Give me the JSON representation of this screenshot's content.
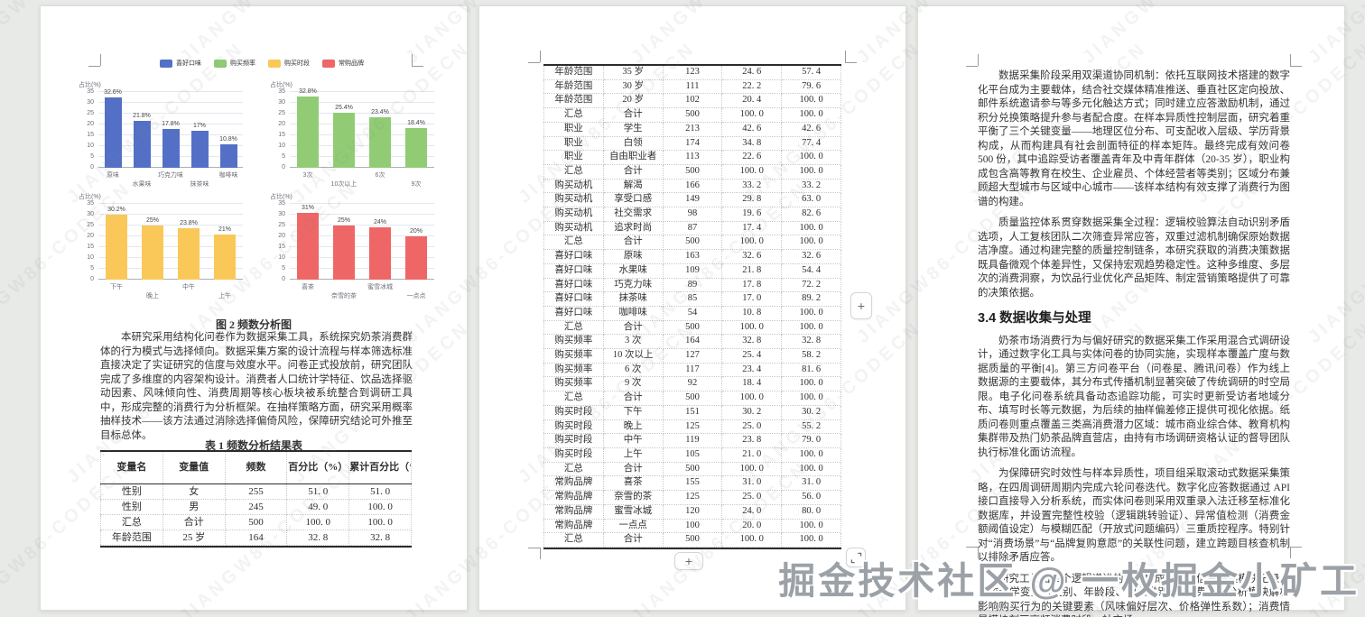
{
  "watermark": {
    "tile_text": "JIANGW86-CODECN",
    "footer_text": "掘金技术社区 @ 一枚掘金小矿工"
  },
  "chart_data": [
    {
      "type": "bar",
      "name": "喜好口味",
      "color": "#5470c6",
      "ylabel": "占比(%)",
      "ylim": [
        0,
        35
      ],
      "categories": [
        "原味",
        "水果味",
        "巧克力味",
        "抹茶味",
        "咖啡味"
      ],
      "values": [
        32.6,
        21.8,
        17.8,
        17,
        10.8
      ]
    },
    {
      "type": "bar",
      "name": "购买频率",
      "color": "#91cc75",
      "ylabel": "占比(%)",
      "ylim": [
        0,
        35
      ],
      "categories": [
        "3次",
        "10次以上",
        "6次",
        "9次"
      ],
      "values": [
        32.8,
        25.4,
        23.4,
        18.4
      ]
    },
    {
      "type": "bar",
      "name": "购买时段",
      "color": "#fac858",
      "ylabel": "占比(%)",
      "ylim": [
        0,
        35
      ],
      "categories": [
        "下午",
        "晚上",
        "中午",
        "上午"
      ],
      "values": [
        30.2,
        25,
        23.8,
        21
      ]
    },
    {
      "type": "bar",
      "name": "常购品牌",
      "color": "#ee6666",
      "ylabel": "占比(%)",
      "ylim": [
        0,
        35
      ],
      "categories": [
        "喜茶",
        "奈雪的茶",
        "蜜雪冰城",
        "一点点"
      ],
      "values": [
        31,
        25,
        24,
        20
      ]
    }
  ],
  "page1": {
    "figure_caption": "图 2 频数分析图",
    "paragraph": "本研究采用结构化问卷作为数据采集工具，系统探究奶茶消费群体的行为模式与选择倾向。数据采集方案的设计流程与样本筛选标准直接决定了实证研究的信度与效度水平。问卷正式投放前，研究团队完成了多维度的内容架构设计。消费者人口统计学特征、饮品选择驱动因素、风味倾向性、消费周期等核心板块被系统整合到调研工具中，形成完整的消费行为分析框架。在抽样策略方面，研究采用概率抽样技术——该方法通过消除选择偏倚风险，保障研究结论可外推至目标总体。",
    "table_caption": "表 1 频数分析结果表",
    "table": {
      "headers": [
        "变量名",
        "变量值",
        "频数",
        "百分比（%）",
        "累计百分比（%）"
      ],
      "rows": [
        [
          "性别",
          "女",
          "255",
          "51. 0",
          "51. 0"
        ],
        [
          "性别",
          "男",
          "245",
          "49. 0",
          "100. 0"
        ],
        [
          "汇总",
          "合计",
          "500",
          "100. 0",
          "100. 0"
        ],
        [
          "年龄范围",
          "25 岁",
          "164",
          "32. 8",
          "32. 8"
        ]
      ]
    }
  },
  "page2": {
    "table_rows": [
      [
        "年龄范围",
        "35 岁",
        "123",
        "24. 6",
        "57. 4"
      ],
      [
        "年龄范围",
        "30 岁",
        "111",
        "22. 2",
        "79. 6"
      ],
      [
        "年龄范围",
        "20 岁",
        "102",
        "20. 4",
        "100. 0"
      ],
      [
        "汇总",
        "合计",
        "500",
        "100. 0",
        "100. 0"
      ],
      [
        "职业",
        "学生",
        "213",
        "42. 6",
        "42. 6"
      ],
      [
        "职业",
        "白领",
        "174",
        "34. 8",
        "77. 4"
      ],
      [
        "职业",
        "自由职业者",
        "113",
        "22. 6",
        "100. 0"
      ],
      [
        "汇总",
        "合计",
        "500",
        "100. 0",
        "100. 0"
      ],
      [
        "购买动机",
        "解渴",
        "166",
        "33. 2",
        "33. 2"
      ],
      [
        "购买动机",
        "享受口感",
        "149",
        "29. 8",
        "63. 0"
      ],
      [
        "购买动机",
        "社交需求",
        "98",
        "19. 6",
        "82. 6"
      ],
      [
        "购买动机",
        "追求时尚",
        "87",
        "17. 4",
        "100. 0"
      ],
      [
        "汇总",
        "合计",
        "500",
        "100. 0",
        "100. 0"
      ],
      [
        "喜好口味",
        "原味",
        "163",
        "32. 6",
        "32. 6"
      ],
      [
        "喜好口味",
        "水果味",
        "109",
        "21. 8",
        "54. 4"
      ],
      [
        "喜好口味",
        "巧克力味",
        "89",
        "17. 8",
        "72. 2"
      ],
      [
        "喜好口味",
        "抹茶味",
        "85",
        "17. 0",
        "89. 2"
      ],
      [
        "喜好口味",
        "咖啡味",
        "54",
        "10. 8",
        "100. 0"
      ],
      [
        "汇总",
        "合计",
        "500",
        "100. 0",
        "100. 0"
      ],
      [
        "购买频率",
        "3 次",
        "164",
        "32. 8",
        "32. 8"
      ],
      [
        "购买频率",
        "10 次以上",
        "127",
        "25. 4",
        "58. 2"
      ],
      [
        "购买频率",
        "6 次",
        "117",
        "23. 4",
        "81. 6"
      ],
      [
        "购买频率",
        "9 次",
        "92",
        "18. 4",
        "100. 0"
      ],
      [
        "汇总",
        "合计",
        "500",
        "100. 0",
        "100. 0"
      ],
      [
        "购买时段",
        "下午",
        "151",
        "30. 2",
        "30. 2"
      ],
      [
        "购买时段",
        "晚上",
        "125",
        "25. 0",
        "55. 2"
      ],
      [
        "购买时段",
        "中午",
        "119",
        "23. 8",
        "79. 0"
      ],
      [
        "购买时段",
        "上午",
        "105",
        "21. 0",
        "100. 0"
      ],
      [
        "汇总",
        "合计",
        "500",
        "100. 0",
        "100. 0"
      ],
      [
        "常购品牌",
        "喜茶",
        "155",
        "31. 0",
        "31. 0"
      ],
      [
        "常购品牌",
        "奈雪的茶",
        "125",
        "25. 0",
        "56. 0"
      ],
      [
        "常购品牌",
        "蜜雪冰城",
        "120",
        "24. 0",
        "80. 0"
      ],
      [
        "常购品牌",
        "一点点",
        "100",
        "20. 0",
        "100. 0"
      ],
      [
        "汇总",
        "合计",
        "500",
        "100. 0",
        "100. 0"
      ]
    ],
    "controls": {
      "add_column": "+",
      "add_row": "+"
    }
  },
  "page3": {
    "paragraph1": "数据采集阶段采用双渠道协同机制：依托互联网技术搭建的数字化平台成为主要载体，结合社交媒体精准推送、垂直社区定向投放、邮件系统邀请参与等多元化触达方式；同时建立应答激励机制，通过积分兑换策略提升参与者配合度。在样本异质性控制层面，研究着重平衡了三个关键变量——地理区位分布、可支配收入层级、学历背景构成，从而构建具有社会剖面特征的样本矩阵。最终完成有效问卷 500 份，其中追踪受访者覆盖青年及中青年群体（20-35 岁），职业构成包含高等教育在校生、企业雇员、个体经营者等类别；区域分布兼顾超大型城市与区域中心城市——该样本结构有效支撑了消费行为图谱的构建。",
    "paragraph2": "质量监控体系贯穿数据采集全过程：逻辑校验算法自动识别矛盾选项，人工复核团队二次筛查异常应答，双重过滤机制确保原始数据洁净度。通过构建完整的质量控制链条，本研究获取的消费决策数据既具备微观个体差异性，又保持宏观趋势稳定性。这种多维度、多层次的消费洞察，为饮品行业优化产品矩阵、制定营销策略提供了可靠的决策依据。",
    "heading": "3.4 数据收集与处理",
    "paragraph3": "奶茶市场消费行为与偏好研究的数据采集工作采用混合式调研设计，通过数字化工具与实体问卷的协同实施，实现样本覆盖广度与数据质量的平衡[4]。第三方问卷平台（问卷星、腾讯问卷）作为线上数据源的主要载体，其分布式传播机制显著突破了传统调研的时空局限。电子化问卷系统具备动态追踪功能，可实时更新受访者地域分布、填写时长等元数据，为后续的抽样偏差修正提供可视化依据。纸质问卷则重点覆盖三类高消费潜力区域：城市商业综合体、教育机构集群带及热门奶茶品牌直营店，由持有市场调研资格认证的督导团队执行标准化面访流程。",
    "paragraph4": "为保障研究时效性与样本异质性，项目组采取滚动式数据采集策略，在四周调研周期内完成六轮问卷迭代。数字化应答数据通过 API 接口直接导入分析系统，而实体问卷则采用双重录入法迁移至标准化数据库，并设置完整性校验（逻辑跳转验证）、异常值检测（消费金额阈值设定）与模糊匹配（开放式问题编码）三重质控程序。特别针对“消费场景”与“品牌复购意愿”的关联性问题，建立跨题目核查机制以排除矛盾应答。",
    "paragraph5": "研究工具由四个逻辑递进的模块构成：基础信息采集模块记录人口统计学变量（性别、年龄段、职业类别）；消费决策分析模块解析影响购买行为的关键要素（风味偏好层次、价格弹性系数）；消费情景模块刻画高频消费时段、社交场"
  }
}
